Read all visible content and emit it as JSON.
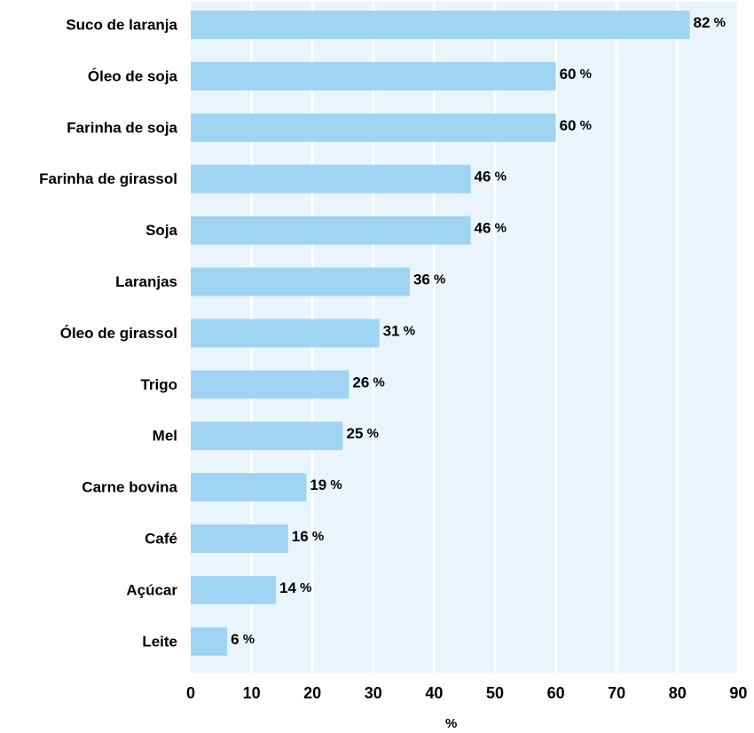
{
  "chart_data": {
    "type": "bar",
    "orientation": "horizontal",
    "categories": [
      "Suco de laranja",
      "Óleo de soja",
      "Farinha de soja",
      "Farinha de girassol",
      "Soja",
      "Laranjas",
      "Óleo de girassol",
      "Trigo",
      "Mel",
      "Carne bovina",
      "Café",
      "Açúcar",
      "Leite"
    ],
    "values": [
      82,
      60,
      60,
      46,
      46,
      36,
      31,
      26,
      25,
      19,
      16,
      14,
      6
    ],
    "value_suffix": "%",
    "xlabel": "%",
    "xlim": [
      0,
      90
    ],
    "xticks": [
      0,
      10,
      20,
      30,
      40,
      50,
      60,
      70,
      80,
      90
    ],
    "grid": "vertical",
    "colors": {
      "bar": "#9fd5f3",
      "plot_background": "#e9f4fc",
      "grid": "#ffffff",
      "text": "#000000"
    }
  }
}
